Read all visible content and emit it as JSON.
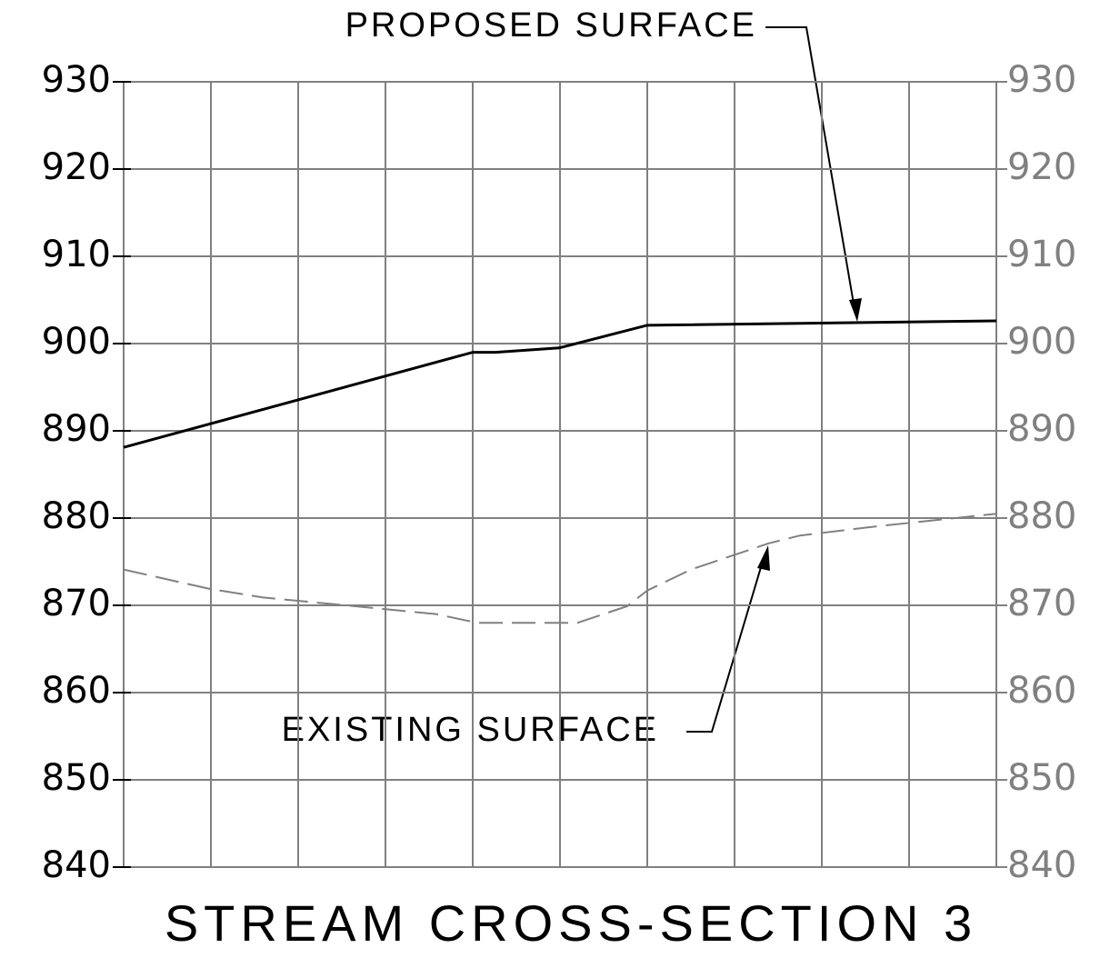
{
  "chart_data": {
    "type": "line",
    "title": "STREAM CROSS-SECTION 3",
    "annotations": [
      {
        "text": "PROPOSED SURFACE"
      },
      {
        "text": "EXISTING SURFACE"
      }
    ],
    "series": [
      {
        "name": "PROPOSED SURFACE",
        "color": "#000000",
        "dashed": false,
        "x": [
          0,
          4,
          4.26,
          4.99,
          6,
          10
        ],
        "values": [
          888.1,
          899.0,
          899.0,
          899.5,
          902.1,
          902.6
        ]
      },
      {
        "name": "EXISTING SURFACE",
        "color": "#808080",
        "dashed": true,
        "x": [
          0,
          0.98,
          1.6,
          2.44,
          2.96,
          3.58,
          4.05,
          5.2,
          5.77,
          6,
          6.5,
          7.39,
          7.75,
          8.58,
          10
        ],
        "values": [
          874.1,
          871.9,
          870.9,
          870.1,
          869.6,
          869.0,
          868.0,
          868.0,
          869.9,
          871.7,
          874.1,
          877.1,
          878.0,
          879.0,
          880.5
        ]
      }
    ],
    "xlim": [
      0,
      10
    ],
    "xticks": [
      0,
      1,
      2,
      3,
      4,
      5,
      6,
      7,
      8,
      9,
      10
    ],
    "ylim": [
      840,
      930
    ],
    "yticks": [
      840,
      850,
      860,
      870,
      880,
      890,
      900,
      910,
      920,
      930
    ],
    "y2lim": [
      840,
      930
    ],
    "y2ticks": [
      840,
      850,
      860,
      870,
      880,
      890,
      900,
      910,
      920,
      930
    ],
    "grid": true
  }
}
